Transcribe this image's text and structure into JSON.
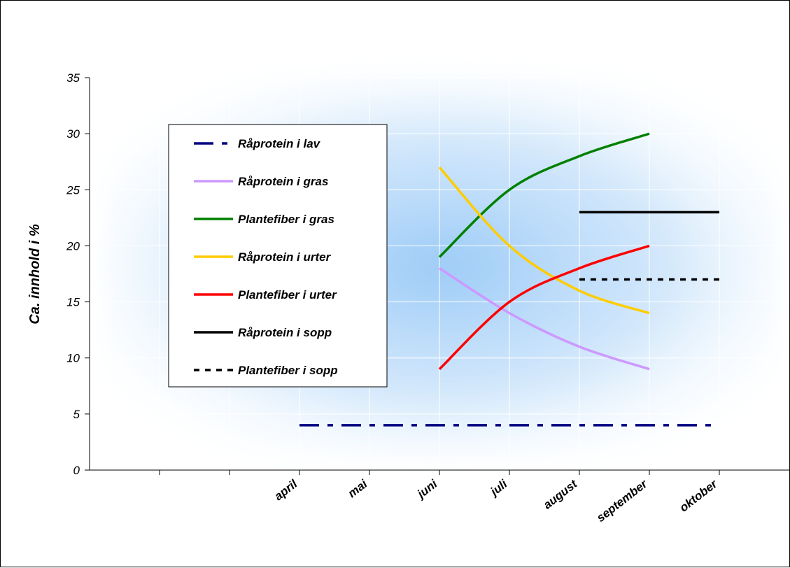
{
  "chart_data": {
    "type": "line",
    "ylabel": "Ca. innhold i %",
    "xlabel": "",
    "ylim": [
      0,
      35
    ],
    "yticks": [
      0,
      5,
      10,
      15,
      20,
      25,
      30,
      35
    ],
    "categories": [
      "",
      "",
      "april",
      "mai",
      "juni",
      "juli",
      "august",
      "september",
      "oktober",
      ""
    ],
    "grid": true,
    "legend_position": "left",
    "series": [
      {
        "name": "Råprotein i lav",
        "color": "#000080",
        "dash": "dashdot",
        "x": [
          "april",
          "oktober"
        ],
        "values": [
          4,
          4
        ]
      },
      {
        "name": "Råprotein i gras",
        "color": "#CC99FF",
        "dash": "solid",
        "x": [
          "juni",
          "juli",
          "august",
          "september"
        ],
        "values": [
          18,
          14,
          11,
          9
        ]
      },
      {
        "name": "Plantefiber i gras",
        "color": "#008000",
        "dash": "solid",
        "x": [
          "juni",
          "juli",
          "august",
          "september"
        ],
        "values": [
          19,
          25,
          28,
          30
        ]
      },
      {
        "name": "Råprotein i urter",
        "color": "#FFCC00",
        "dash": "solid",
        "x": [
          "juni",
          "juli",
          "august",
          "september"
        ],
        "values": [
          27,
          20,
          16,
          14
        ]
      },
      {
        "name": "Plantefiber i urter",
        "color": "#FF0000",
        "dash": "solid",
        "x": [
          "juni",
          "juli",
          "august",
          "september"
        ],
        "values": [
          9,
          15,
          18,
          20
        ]
      },
      {
        "name": "Råprotein i sopp",
        "color": "#000000",
        "dash": "solid",
        "x": [
          "august",
          "september",
          "oktober"
        ],
        "values": [
          23,
          23,
          23
        ]
      },
      {
        "name": "Plantefiber i sopp",
        "color": "#000000",
        "dash": "dotted",
        "x": [
          "august",
          "september",
          "oktober"
        ],
        "values": [
          17,
          17,
          17
        ]
      }
    ]
  }
}
